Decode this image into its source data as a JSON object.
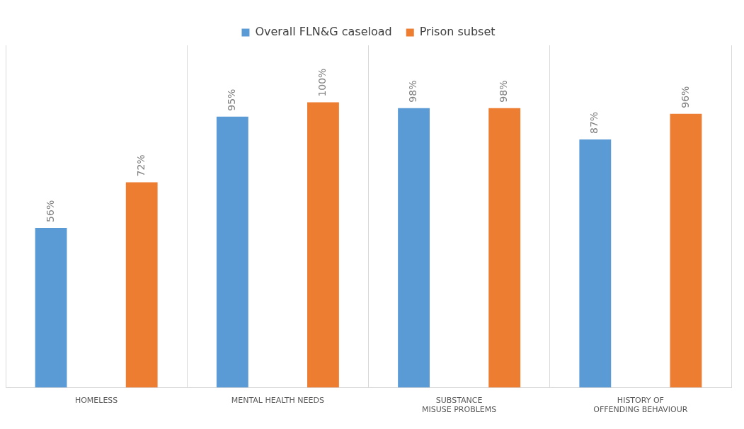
{
  "chart_data": {
    "type": "bar",
    "categories": [
      "HOMELESS",
      "MENTAL HEALTH NEEDS",
      "SUBSTANCE MISUSE PROBLEMS",
      "HISTORY OF OFFENDING BEHAVIOUR"
    ],
    "series": [
      {
        "name": "Overall FLN&G caseload",
        "color": "#5b9bd5",
        "values": [
          56,
          95,
          98,
          87
        ],
        "value_labels": [
          "56%",
          "95%",
          "98%",
          "87%"
        ]
      },
      {
        "name": "Prison subset",
        "color": "#ed7d31",
        "values": [
          72,
          100,
          98,
          96
        ],
        "value_labels": [
          "72%",
          "100%",
          "98%",
          "96%"
        ]
      }
    ],
    "grid": "x",
    "legend": "top"
  }
}
